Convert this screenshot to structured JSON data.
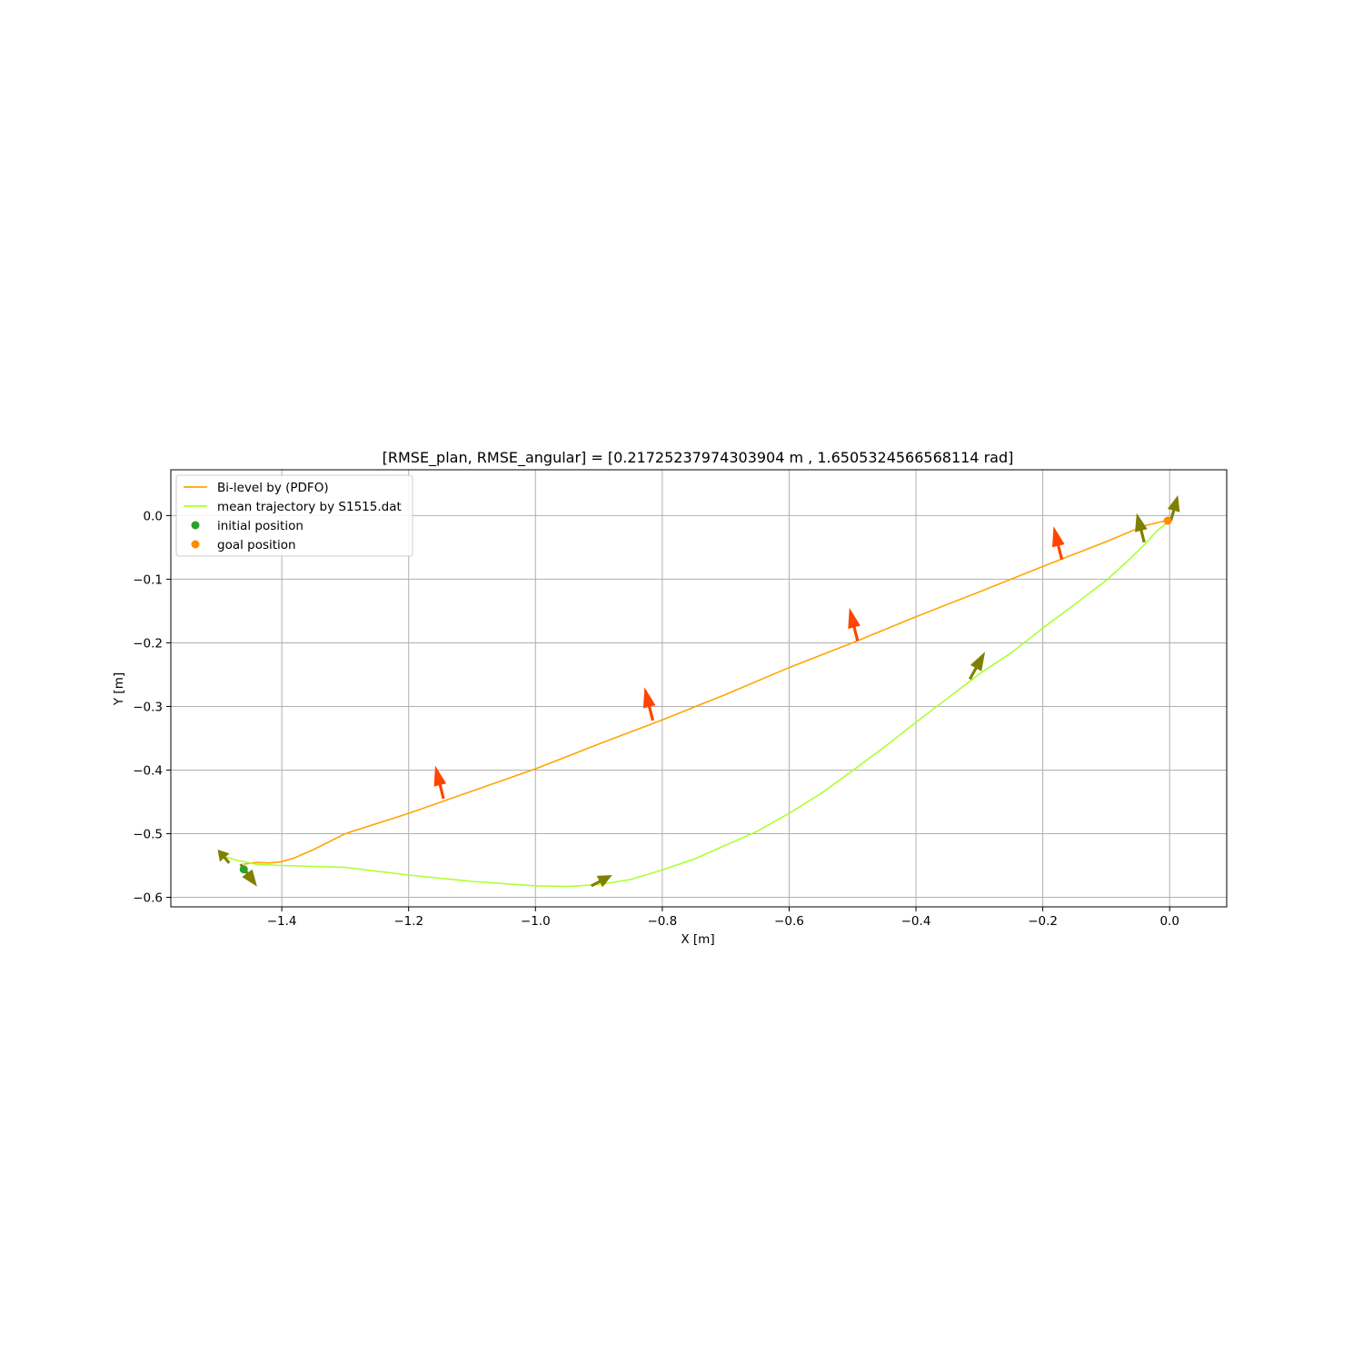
{
  "chart_data": {
    "type": "line",
    "title": "[RMSE_plan, RMSE_angular] = [0.21725237974303904 m , 1.6505324566568114 rad]",
    "xlabel": "X [m]",
    "ylabel": "Y [m]",
    "xlim": [
      -1.575,
      0.09
    ],
    "ylim": [
      -0.615,
      0.072
    ],
    "x_ticks": [
      -1.4,
      -1.2,
      -1.0,
      -0.8,
      -0.6,
      -0.4,
      -0.2,
      0.0
    ],
    "x_tick_labels": [
      "−1.4",
      "−1.2",
      "−1.0",
      "−0.8",
      "−0.6",
      "−0.4",
      "−0.2",
      "0.0"
    ],
    "y_ticks": [
      0.0,
      -0.1,
      -0.2,
      -0.3,
      -0.4,
      -0.5,
      -0.6
    ],
    "y_tick_labels": [
      "0.0",
      "−0.1",
      "−0.2",
      "−0.3",
      "−0.4",
      "−0.5",
      "−0.6"
    ],
    "grid": true,
    "legend_position": "top-left",
    "series": [
      {
        "name": "Bi-level by (PDFO)",
        "kind": "line",
        "color": "#ffa500",
        "x": [
          -1.46,
          -1.44,
          -1.42,
          -1.4,
          -1.38,
          -1.35,
          -1.3,
          -1.2,
          -1.1,
          -1.0,
          -0.9,
          -0.8,
          -0.7,
          -0.6,
          -0.5,
          -0.4,
          -0.3,
          -0.2,
          -0.1,
          -0.04,
          -0.01,
          0.0
        ],
        "y": [
          -0.548,
          -0.545,
          -0.546,
          -0.544,
          -0.538,
          -0.525,
          -0.5,
          -0.468,
          -0.433,
          -0.398,
          -0.359,
          -0.321,
          -0.281,
          -0.239,
          -0.2,
          -0.159,
          -0.12,
          -0.08,
          -0.041,
          -0.016,
          -0.009,
          -0.008
        ]
      },
      {
        "name": "mean trajectory by S1515.dat",
        "kind": "line",
        "color": "#adff2f",
        "x": [
          -1.5,
          -1.47,
          -1.44,
          -1.4,
          -1.3,
          -1.2,
          -1.1,
          -1.0,
          -0.95,
          -0.9,
          -0.85,
          -0.8,
          -0.75,
          -0.7,
          -0.65,
          -0.6,
          -0.55,
          -0.5,
          -0.45,
          -0.4,
          -0.35,
          -0.3,
          -0.25,
          -0.2,
          -0.15,
          -0.1,
          -0.07,
          -0.04,
          -0.02,
          0.0
        ],
        "y": [
          -0.533,
          -0.542,
          -0.548,
          -0.55,
          -0.553,
          -0.565,
          -0.575,
          -0.582,
          -0.583,
          -0.58,
          -0.572,
          -0.557,
          -0.54,
          -0.518,
          -0.496,
          -0.468,
          -0.437,
          -0.401,
          -0.364,
          -0.325,
          -0.287,
          -0.249,
          -0.216,
          -0.177,
          -0.14,
          -0.102,
          -0.075,
          -0.046,
          -0.024,
          -0.008
        ]
      },
      {
        "name": "initial position",
        "kind": "point",
        "color": "#2ca02c",
        "x": -1.46,
        "y": -0.556
      },
      {
        "name": "goal position",
        "kind": "point",
        "color": "#ff8c00",
        "x": -0.003,
        "y": -0.008
      }
    ],
    "arrows_planned": {
      "color": "#ff4500",
      "items": [
        {
          "x": -1.145,
          "y": -0.445,
          "dx": -0.013,
          "dy": 0.052
        },
        {
          "x": -0.815,
          "y": -0.322,
          "dx": -0.013,
          "dy": 0.052
        },
        {
          "x": -0.492,
          "y": -0.197,
          "dx": -0.013,
          "dy": 0.052
        },
        {
          "x": -0.17,
          "y": -0.069,
          "dx": -0.013,
          "dy": 0.052
        }
      ]
    },
    "arrows_measured": {
      "color": "#808000",
      "items": [
        {
          "x": -1.483,
          "y": -0.546,
          "dx": -0.018,
          "dy": 0.021
        },
        {
          "x": -1.465,
          "y": -0.548,
          "dx": 0.026,
          "dy": -0.035
        },
        {
          "x": -0.912,
          "y": -0.582,
          "dx": 0.033,
          "dy": 0.017
        },
        {
          "x": -0.315,
          "y": -0.257,
          "dx": 0.024,
          "dy": 0.043
        },
        {
          "x": -0.04,
          "y": -0.042,
          "dx": -0.012,
          "dy": 0.046
        },
        {
          "x": 0.002,
          "y": -0.008,
          "dx": 0.011,
          "dy": 0.04
        }
      ]
    }
  }
}
